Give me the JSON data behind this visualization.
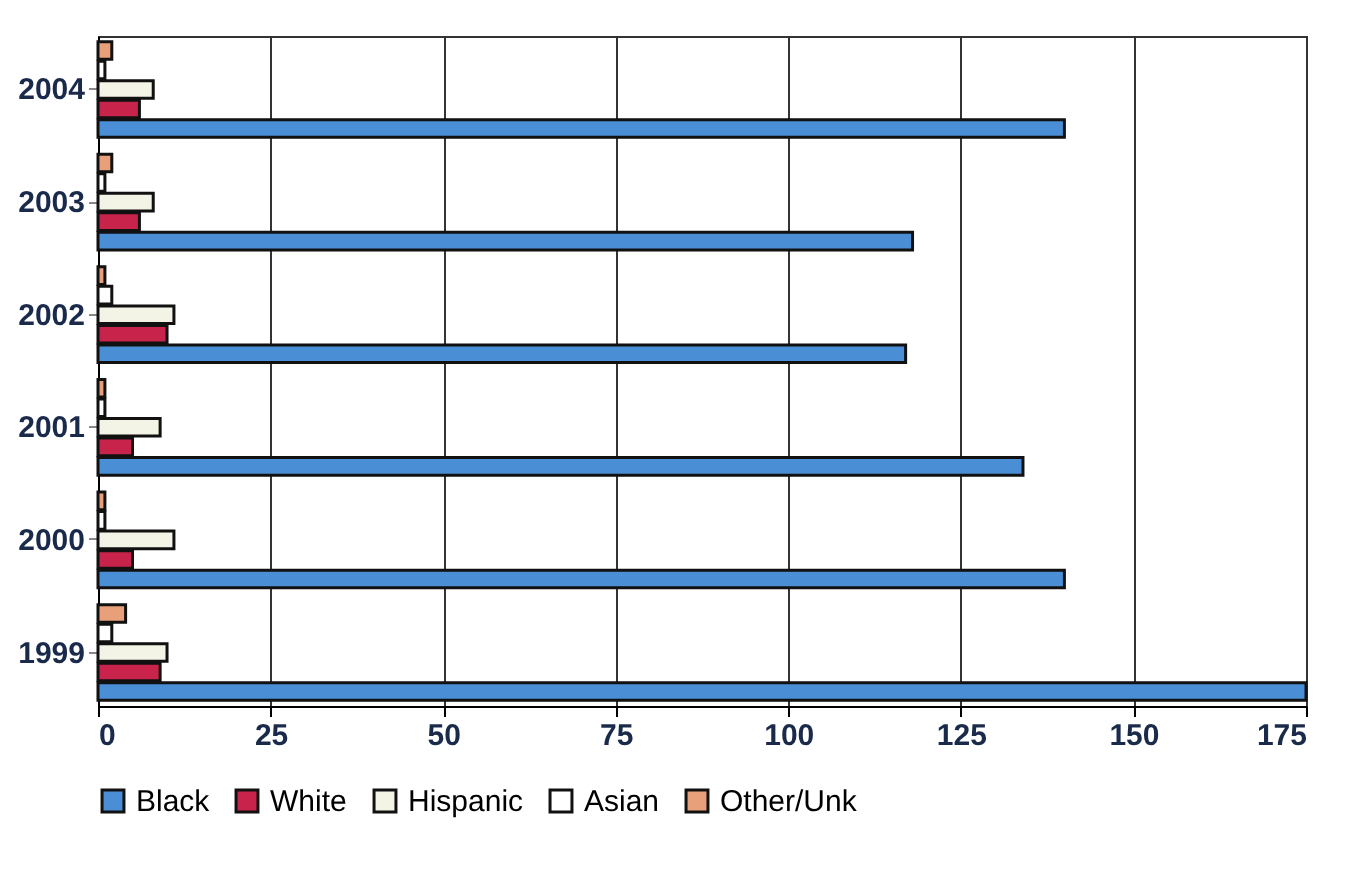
{
  "chart_data": {
    "type": "bar",
    "orientation": "horizontal",
    "categories": [
      "2004",
      "2003",
      "2002",
      "2001",
      "2000",
      "1999"
    ],
    "series": [
      {
        "name": "Black",
        "color": "#4a8fd6",
        "values": [
          140,
          118,
          117,
          134,
          140,
          175
        ]
      },
      {
        "name": "White",
        "color": "#c8234a",
        "values": [
          6,
          6,
          10,
          5,
          5,
          9
        ]
      },
      {
        "name": "Hispanic",
        "color": "#f4f4e6",
        "values": [
          8,
          8,
          11,
          9,
          11,
          10
        ]
      },
      {
        "name": "Asian",
        "color": "#ffffff",
        "values": [
          1,
          1,
          2,
          1,
          1,
          2
        ]
      },
      {
        "name": "Other/Unk",
        "color": "#e8a07a",
        "values": [
          2,
          2,
          1,
          1,
          1,
          4
        ]
      }
    ],
    "xlim": [
      0,
      175
    ],
    "xticks": [
      0,
      25,
      50,
      75,
      100,
      125,
      150,
      175
    ],
    "grid": "x",
    "legend": "bottom"
  }
}
